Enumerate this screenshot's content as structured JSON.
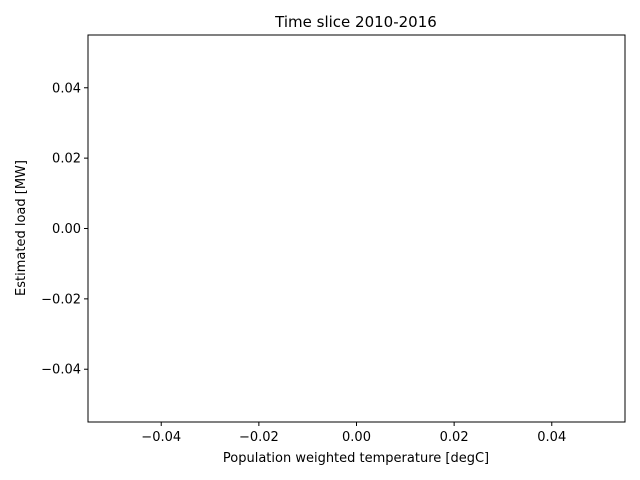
{
  "chart_data": {
    "type": "scatter",
    "title": "Time slice 2010-2016",
    "xlabel": "Population weighted temperature [degC]",
    "ylabel": "Estimated load [MW]",
    "xlim": [
      -0.055,
      0.055
    ],
    "ylim": [
      -0.055,
      0.055
    ],
    "x_ticks": [
      -0.04,
      -0.02,
      0.0,
      0.02,
      0.04
    ],
    "y_ticks": [
      -0.04,
      -0.02,
      0.0,
      0.02,
      0.04
    ],
    "x_tick_labels": [
      "−0.04",
      "−0.02",
      "0.00",
      "0.02",
      "0.04"
    ],
    "y_tick_labels": [
      "−0.04",
      "−0.02",
      "0.00",
      "0.02",
      "0.04"
    ],
    "series": [
      {
        "x": [],
        "y": []
      }
    ],
    "grid": false,
    "legend": false
  }
}
